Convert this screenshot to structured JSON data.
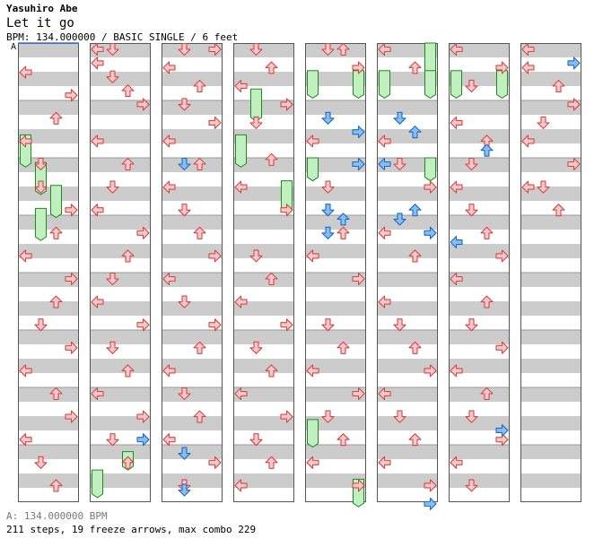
{
  "header": {
    "artist": "Yasuhiro Abe",
    "title": "Let it go",
    "info": "BPM: 134.000000 / BASIC SINGLE / 6 feet"
  },
  "bpm_marker": {
    "label": "A"
  },
  "footer": {
    "bpm_line": "A: 134.000000 BPM",
    "stats": "211 steps, 19 freeze arrows, max combo 229"
  },
  "colors": {
    "stripe": "#cccccc",
    "background": "#ffffff",
    "step_fill": "#ffc8c8",
    "step_stroke": "#d04848",
    "quarter_fill": "#80bff8",
    "quarter_stroke": "#2868b8",
    "freeze_fill": "#c0f0c0",
    "freeze_stroke": "#208820",
    "border": "#555555"
  },
  "chart": {
    "columns": 8,
    "measures_per_column": 8,
    "lanes": [
      "left",
      "down",
      "up",
      "right"
    ],
    "column_notes": [
      [
        [
          0.05,
          0
        ],
        [
          0.1,
          3
        ],
        [
          0.15,
          2
        ],
        [
          0.2,
          0
        ],
        [
          0.25,
          1
        ],
        [
          0.3,
          1
        ],
        [
          0.35,
          3
        ],
        [
          0.4,
          2
        ],
        [
          0.45,
          0
        ],
        [
          0.5,
          3
        ],
        [
          0.55,
          2
        ],
        [
          0.6,
          1
        ],
        [
          0.65,
          3
        ],
        [
          0.7,
          0
        ],
        [
          0.75,
          2
        ],
        [
          0.8,
          3
        ],
        [
          0.85,
          0
        ],
        [
          0.9,
          1
        ],
        [
          0.95,
          2
        ]
      ],
      [
        [
          0.0,
          0
        ],
        [
          0.0,
          1
        ],
        [
          0.03,
          0
        ],
        [
          0.06,
          1
        ],
        [
          0.09,
          2
        ],
        [
          0.12,
          3
        ],
        [
          0.2,
          0
        ],
        [
          0.25,
          2
        ],
        [
          0.3,
          1
        ],
        [
          0.35,
          0
        ],
        [
          0.4,
          3
        ],
        [
          0.45,
          2
        ],
        [
          0.5,
          1
        ],
        [
          0.55,
          0
        ],
        [
          0.6,
          3
        ],
        [
          0.65,
          1
        ],
        [
          0.7,
          2
        ],
        [
          0.75,
          0
        ],
        [
          0.8,
          3
        ],
        [
          0.85,
          1
        ],
        [
          0.9,
          2
        ]
      ],
      [
        [
          0.0,
          1
        ],
        [
          0.0,
          3
        ],
        [
          0.04,
          0
        ],
        [
          0.08,
          2
        ],
        [
          0.12,
          1
        ],
        [
          0.16,
          3
        ],
        [
          0.2,
          0
        ],
        [
          0.25,
          2
        ],
        [
          0.3,
          0
        ],
        [
          0.35,
          1
        ],
        [
          0.4,
          2
        ],
        [
          0.45,
          3
        ],
        [
          0.5,
          0
        ],
        [
          0.55,
          1
        ],
        [
          0.6,
          3
        ],
        [
          0.65,
          2
        ],
        [
          0.7,
          0
        ],
        [
          0.75,
          1
        ],
        [
          0.8,
          2
        ],
        [
          0.85,
          0
        ],
        [
          0.9,
          3
        ],
        [
          0.95,
          1
        ]
      ],
      [
        [
          0.0,
          1
        ],
        [
          0.04,
          2
        ],
        [
          0.08,
          0
        ],
        [
          0.12,
          3
        ],
        [
          0.16,
          1
        ],
        [
          0.24,
          2
        ],
        [
          0.3,
          0
        ],
        [
          0.35,
          3
        ],
        [
          0.45,
          1
        ],
        [
          0.5,
          2
        ],
        [
          0.55,
          0
        ],
        [
          0.6,
          3
        ],
        [
          0.65,
          1
        ],
        [
          0.7,
          2
        ],
        [
          0.75,
          0
        ],
        [
          0.8,
          3
        ],
        [
          0.85,
          1
        ],
        [
          0.9,
          2
        ],
        [
          0.95,
          0
        ]
      ],
      [
        [
          0.0,
          1
        ],
        [
          0.0,
          2
        ],
        [
          0.04,
          3
        ],
        [
          0.2,
          0
        ],
        [
          0.25,
          3
        ],
        [
          0.3,
          1
        ],
        [
          0.4,
          2
        ],
        [
          0.45,
          0
        ],
        [
          0.5,
          3
        ],
        [
          0.6,
          1
        ],
        [
          0.65,
          2
        ],
        [
          0.7,
          0
        ],
        [
          0.75,
          3
        ],
        [
          0.8,
          1
        ],
        [
          0.85,
          2
        ],
        [
          0.9,
          0
        ],
        [
          0.95,
          3
        ]
      ],
      [
        [
          0.0,
          0
        ],
        [
          0.04,
          2
        ],
        [
          0.2,
          0
        ],
        [
          0.25,
          1
        ],
        [
          0.3,
          3
        ],
        [
          0.4,
          0
        ],
        [
          0.45,
          2
        ],
        [
          0.55,
          0
        ],
        [
          0.6,
          1
        ],
        [
          0.65,
          2
        ],
        [
          0.7,
          3
        ],
        [
          0.75,
          0
        ],
        [
          0.8,
          1
        ],
        [
          0.85,
          2
        ],
        [
          0.9,
          0
        ],
        [
          0.95,
          3
        ]
      ],
      [
        [
          0.0,
          0
        ],
        [
          0.04,
          3
        ],
        [
          0.08,
          1
        ],
        [
          0.16,
          0
        ],
        [
          0.2,
          2
        ],
        [
          0.25,
          1
        ],
        [
          0.3,
          0
        ],
        [
          0.35,
          1
        ],
        [
          0.4,
          2
        ],
        [
          0.45,
          3
        ],
        [
          0.5,
          0
        ],
        [
          0.55,
          2
        ],
        [
          0.6,
          1
        ],
        [
          0.65,
          3
        ],
        [
          0.7,
          0
        ],
        [
          0.75,
          2
        ],
        [
          0.8,
          1
        ],
        [
          0.85,
          3
        ],
        [
          0.9,
          0
        ],
        [
          0.95,
          1
        ]
      ],
      [
        [
          0.0,
          0
        ],
        [
          0.04,
          0
        ],
        [
          0.08,
          2
        ],
        [
          0.12,
          3
        ],
        [
          0.16,
          1
        ],
        [
          0.2,
          0
        ],
        [
          0.25,
          3
        ],
        [
          0.3,
          0
        ],
        [
          0.3,
          1
        ],
        [
          0.35,
          2
        ]
      ]
    ],
    "column_quarter_notes": [
      [],
      [
        [
          0.85,
          3
        ]
      ],
      [
        [
          0.25,
          1
        ],
        [
          0.88,
          1
        ],
        [
          0.96,
          1
        ]
      ],
      [],
      [
        [
          0.15,
          1
        ],
        [
          0.18,
          3
        ],
        [
          0.25,
          3
        ],
        [
          0.35,
          1
        ],
        [
          0.37,
          2
        ],
        [
          0.4,
          1
        ]
      ],
      [
        [
          0.15,
          1
        ],
        [
          0.18,
          2
        ],
        [
          0.25,
          0
        ],
        [
          0.35,
          2
        ],
        [
          0.37,
          1
        ],
        [
          0.4,
          3
        ],
        [
          0.99,
          3
        ]
      ],
      [
        [
          0.22,
          2
        ],
        [
          0.42,
          0
        ],
        [
          0.83,
          3
        ]
      ],
      [
        [
          0.03,
          3
        ]
      ]
    ],
    "column_freezes": [
      [
        [
          0.2,
          0.27,
          0
        ],
        [
          0.26,
          0.33,
          1
        ],
        [
          0.31,
          0.38,
          2
        ],
        [
          0.36,
          0.43,
          1
        ]
      ],
      [
        [
          0.93,
          0.99,
          0
        ],
        [
          0.89,
          0.93,
          2
        ]
      ],
      [],
      [
        [
          0.1,
          0.17,
          1
        ],
        [
          0.2,
          0.27,
          0
        ],
        [
          0.3,
          0.37,
          3
        ]
      ],
      [
        [
          0.06,
          0.12,
          0
        ],
        [
          0.06,
          0.12,
          3
        ],
        [
          0.25,
          0.3,
          0
        ],
        [
          0.82,
          0.88,
          0
        ],
        [
          0.95,
          1.01,
          3
        ]
      ],
      [
        [
          0.0,
          0.08,
          3
        ],
        [
          0.06,
          0.12,
          0
        ],
        [
          0.06,
          0.12,
          3
        ],
        [
          0.25,
          0.3,
          3
        ]
      ],
      [
        [
          0.06,
          0.12,
          0
        ],
        [
          0.06,
          0.12,
          3
        ]
      ],
      []
    ]
  }
}
